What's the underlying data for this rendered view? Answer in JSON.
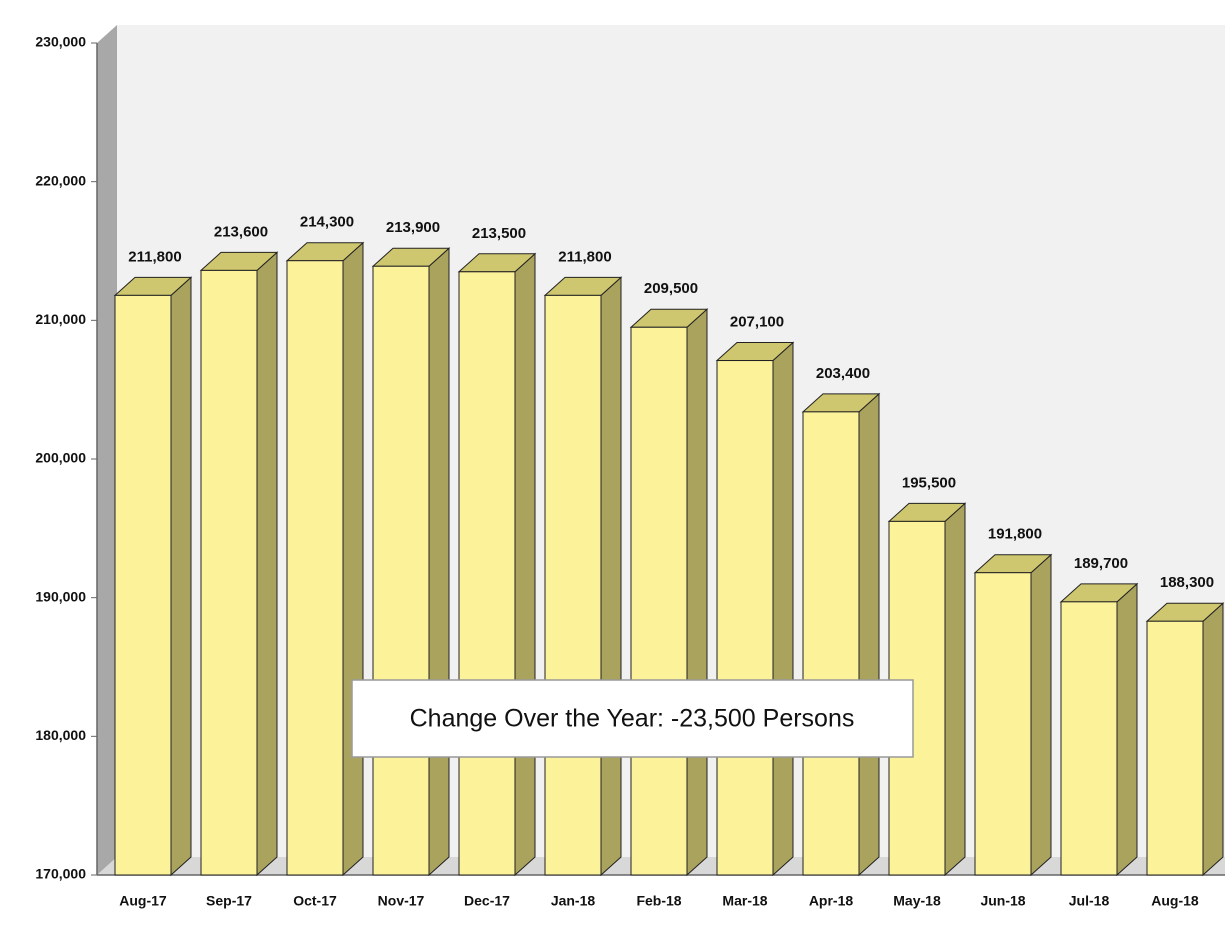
{
  "chart_data": {
    "type": "bar3d",
    "categories": [
      "Aug-17",
      "Sep-17",
      "Oct-17",
      "Nov-17",
      "Dec-17",
      "Jan-18",
      "Feb-18",
      "Mar-18",
      "Apr-18",
      "May-18",
      "Jun-18",
      "Jul-18",
      "Aug-18"
    ],
    "values": [
      211800,
      213600,
      214300,
      213900,
      213500,
      211800,
      209500,
      207100,
      203400,
      195500,
      191800,
      189700,
      188300
    ],
    "value_labels": [
      "211,800",
      "213,600",
      "214,300",
      "213,900",
      "213,500",
      "211,800",
      "209,500",
      "207,100",
      "203,400",
      "195,500",
      "191,800",
      "189,700",
      "188,300"
    ],
    "color": "#fbf29a",
    "ylim": [
      170000,
      230000
    ],
    "yticks": [
      {
        "value": 170000,
        "label": "170,000"
      },
      {
        "value": 180000,
        "label": "180,000"
      },
      {
        "value": 190000,
        "label": "190,000"
      },
      {
        "value": 200000,
        "label": "200,000"
      },
      {
        "value": 210000,
        "label": "210,000"
      },
      {
        "value": 220000,
        "label": "220,000"
      },
      {
        "value": 230000,
        "label": "230,000"
      }
    ],
    "annotation": "Change Over  the Year: -23,500 Persons"
  }
}
